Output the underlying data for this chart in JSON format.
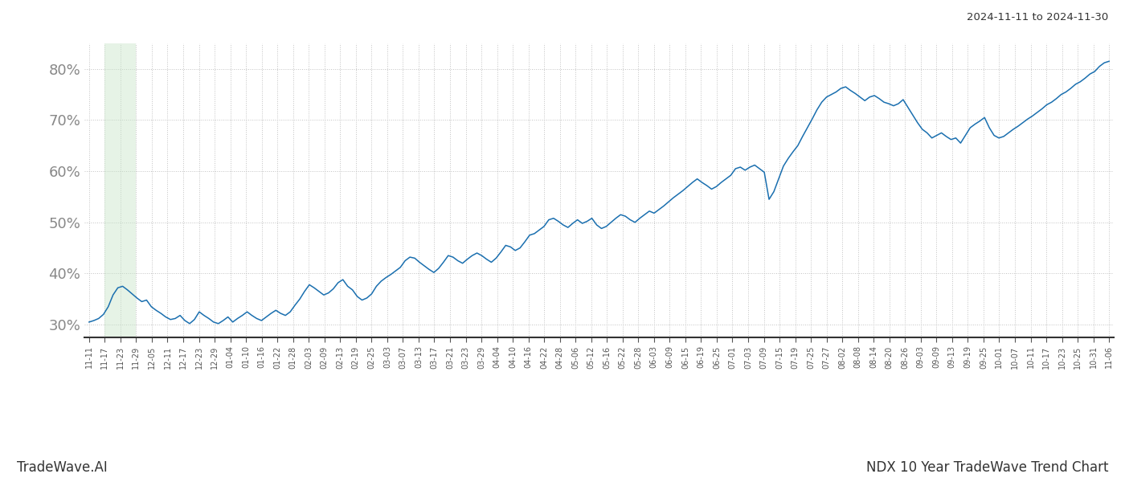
{
  "title_top_right": "2024-11-11 to 2024-11-30",
  "label_bottom_left": "TradeWave.AI",
  "label_bottom_right": "NDX 10 Year TradeWave Trend Chart",
  "line_color": "#1a6faf",
  "shading_color": "#c8e6c9",
  "shading_alpha": 0.45,
  "bg_color": "#ffffff",
  "grid_color": "#bbbbbb",
  "ylim_min": 27.5,
  "ylim_max": 85.0,
  "yticks": [
    30,
    40,
    50,
    60,
    70,
    80
  ],
  "x_labels": [
    "11-11",
    "11-17",
    "11-23",
    "11-29",
    "12-05",
    "12-11",
    "12-17",
    "12-23",
    "12-29",
    "01-04",
    "01-10",
    "01-16",
    "01-22",
    "01-28",
    "02-03",
    "02-09",
    "02-13",
    "02-19",
    "02-25",
    "03-03",
    "03-07",
    "03-13",
    "03-17",
    "03-21",
    "03-23",
    "03-29",
    "04-04",
    "04-10",
    "04-16",
    "04-22",
    "04-28",
    "05-06",
    "05-12",
    "05-16",
    "05-22",
    "05-28",
    "06-03",
    "06-09",
    "06-15",
    "06-19",
    "06-25",
    "07-01",
    "07-03",
    "07-09",
    "07-15",
    "07-19",
    "07-25",
    "07-27",
    "08-02",
    "08-08",
    "08-14",
    "08-20",
    "08-26",
    "09-03",
    "09-09",
    "09-13",
    "09-19",
    "09-25",
    "10-01",
    "10-07",
    "10-11",
    "10-17",
    "10-23",
    "10-25",
    "10-31",
    "11-06"
  ],
  "shading_label_start": "11-17",
  "shading_label_end": "11-29",
  "y_values": [
    30.5,
    30.8,
    31.2,
    32.0,
    33.5,
    35.8,
    37.2,
    37.5,
    36.8,
    36.0,
    35.2,
    34.5,
    34.8,
    33.5,
    32.8,
    32.2,
    31.5,
    31.0,
    31.2,
    31.8,
    30.8,
    30.2,
    31.0,
    32.5,
    31.8,
    31.2,
    30.5,
    30.2,
    30.8,
    31.5,
    30.5,
    31.2,
    31.8,
    32.5,
    31.8,
    31.2,
    30.8,
    31.5,
    32.2,
    32.8,
    32.2,
    31.8,
    32.5,
    33.8,
    35.0,
    36.5,
    37.8,
    37.2,
    36.5,
    35.8,
    36.2,
    37.0,
    38.2,
    38.8,
    37.5,
    36.8,
    35.5,
    34.8,
    35.2,
    36.0,
    37.5,
    38.5,
    39.2,
    39.8,
    40.5,
    41.2,
    42.5,
    43.2,
    43.0,
    42.2,
    41.5,
    40.8,
    40.2,
    41.0,
    42.2,
    43.5,
    43.2,
    42.5,
    42.0,
    42.8,
    43.5,
    44.0,
    43.5,
    42.8,
    42.2,
    43.0,
    44.2,
    45.5,
    45.2,
    44.5,
    45.0,
    46.2,
    47.5,
    47.8,
    48.5,
    49.2,
    50.5,
    50.8,
    50.2,
    49.5,
    49.0,
    49.8,
    50.5,
    49.8,
    50.2,
    50.8,
    49.5,
    48.8,
    49.2,
    50.0,
    50.8,
    51.5,
    51.2,
    50.5,
    50.0,
    50.8,
    51.5,
    52.2,
    51.8,
    52.5,
    53.2,
    54.0,
    54.8,
    55.5,
    56.2,
    57.0,
    57.8,
    58.5,
    57.8,
    57.2,
    56.5,
    57.0,
    57.8,
    58.5,
    59.2,
    60.5,
    60.8,
    60.2,
    60.8,
    61.2,
    60.5,
    59.8,
    54.5,
    56.0,
    58.5,
    61.0,
    62.5,
    63.8,
    65.0,
    66.8,
    68.5,
    70.2,
    72.0,
    73.5,
    74.5,
    75.0,
    75.5,
    76.2,
    76.5,
    75.8,
    75.2,
    74.5,
    73.8,
    74.5,
    74.8,
    74.2,
    73.5,
    73.2,
    72.8,
    73.2,
    74.0,
    72.5,
    71.0,
    69.5,
    68.2,
    67.5,
    66.5,
    67.0,
    67.5,
    66.8,
    66.2,
    66.5,
    65.5,
    67.0,
    68.5,
    69.2,
    69.8,
    70.5,
    68.5,
    67.0,
    66.5,
    66.8,
    67.5,
    68.2,
    68.8,
    69.5,
    70.2,
    70.8,
    71.5,
    72.2,
    73.0,
    73.5,
    74.2,
    75.0,
    75.5,
    76.2,
    77.0,
    77.5,
    78.2,
    79.0,
    79.5,
    80.5,
    81.2,
    81.5
  ]
}
